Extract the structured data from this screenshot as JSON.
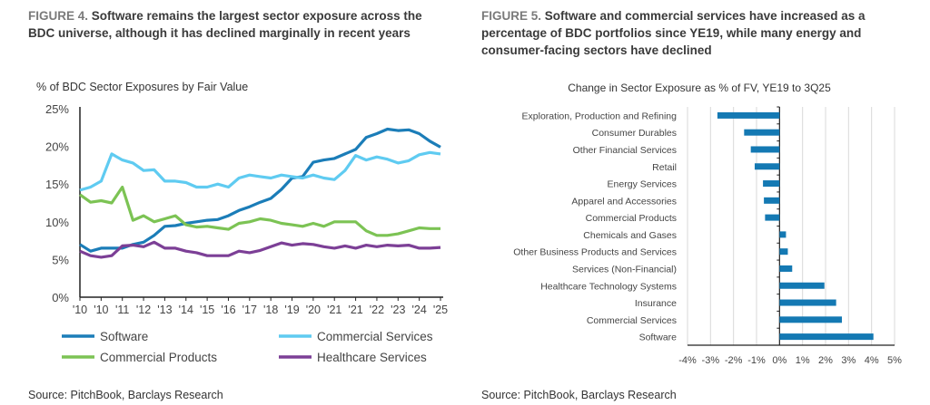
{
  "left": {
    "figure_label": "FIGURE 4.",
    "title": "Software remains the largest sector exposure across the BDC universe, although it has declined marginally in recent years",
    "source": "Source: PitchBook, Barclays Research"
  },
  "right": {
    "figure_label": "FIGURE 5.",
    "title": "Software and commercial services have increased as a percentage of BDC portfolios since YE19, while many energy and consumer-facing sectors have declined",
    "source": "Source: PitchBook, Barclays Research"
  },
  "chart_data": [
    {
      "type": "line",
      "title": "% of BDC Sector Exposures by Fair Value",
      "x_tick_labels": [
        "'10",
        "'10",
        "'11",
        "'12",
        "'13",
        "'14",
        "'15",
        "'16",
        "'17",
        "'18",
        "'19",
        "'20",
        "'21",
        "'21",
        "'22",
        "'23",
        "'24",
        "'25"
      ],
      "samples_per_tick": 2,
      "ylim": [
        0,
        25
      ],
      "y_ticks": [
        "0%",
        "5%",
        "10%",
        "15%",
        "20%",
        "25%"
      ],
      "y_tick_values": [
        0,
        5,
        10,
        15,
        20,
        25
      ],
      "grid": false,
      "legend": "bottom",
      "series": [
        {
          "name": "Software",
          "color": "#1b7db8",
          "values": [
            7.0,
            6.1,
            6.5,
            6.5,
            6.5,
            7.0,
            7.3,
            8.2,
            9.4,
            9.5,
            9.8,
            10.0,
            10.2,
            10.3,
            10.8,
            11.5,
            12.0,
            12.6,
            13.1,
            14.3,
            15.8,
            16.0,
            17.9,
            18.2,
            18.4,
            19.0,
            19.6,
            21.2,
            21.7,
            22.3,
            22.1,
            22.2,
            21.7,
            20.7,
            19.9
          ]
        },
        {
          "name": "Commercial Services",
          "color": "#5fcbf1",
          "values": [
            14.2,
            14.6,
            15.4,
            19.0,
            18.2,
            17.8,
            16.8,
            16.9,
            15.4,
            15.4,
            15.2,
            14.6,
            14.6,
            15.0,
            14.6,
            15.8,
            16.2,
            16.0,
            15.8,
            16.2,
            16.0,
            15.8,
            16.2,
            15.8,
            15.6,
            16.8,
            18.8,
            18.2,
            18.6,
            18.3,
            17.8,
            18.1,
            18.9,
            19.2,
            19.0
          ]
        },
        {
          "name": "Commercial Products",
          "color": "#7cc354",
          "values": [
            13.6,
            12.6,
            12.8,
            12.5,
            14.6,
            10.2,
            10.8,
            10.0,
            10.4,
            10.8,
            9.6,
            9.3,
            9.4,
            9.2,
            9.0,
            9.8,
            10.0,
            10.4,
            10.2,
            9.8,
            9.6,
            9.4,
            9.8,
            9.4,
            10.0,
            10.0,
            10.0,
            8.8,
            8.2,
            8.2,
            8.4,
            8.8,
            9.2,
            9.1,
            9.1
          ]
        },
        {
          "name": "Healthcare Services",
          "color": "#7c3f96",
          "values": [
            6.1,
            5.5,
            5.3,
            5.5,
            6.8,
            6.9,
            6.7,
            7.3,
            6.5,
            6.5,
            6.1,
            5.9,
            5.5,
            5.5,
            5.5,
            6.1,
            5.9,
            6.2,
            6.7,
            7.2,
            6.9,
            7.1,
            7.0,
            6.7,
            6.5,
            6.8,
            6.5,
            6.9,
            6.7,
            6.9,
            6.8,
            6.9,
            6.5,
            6.5,
            6.6
          ]
        }
      ]
    },
    {
      "type": "bar",
      "orientation": "horizontal",
      "title": "Change in Sector Exposure as % of FV, YE19 to 3Q25",
      "categories": [
        "Exploration, Production and Refining",
        "Consumer Durables",
        "Other Financial Services",
        "Retail",
        "Energy Services",
        "Apparel and Accessories",
        "Commercial Products",
        "Chemicals and Gases",
        "Other Business Products and Services",
        "Services (Non-Financial)",
        "Healthcare Technology Systems",
        "Insurance",
        "Commercial Services",
        "Software"
      ],
      "values": [
        -2.7,
        -1.54,
        -1.25,
        -1.08,
        -0.72,
        -0.68,
        -0.63,
        0.28,
        0.36,
        0.55,
        1.95,
        2.46,
        2.71,
        4.08
      ],
      "xlim": [
        -4,
        5
      ],
      "x_ticks": [
        "-4%",
        "-3%",
        "-2%",
        "-1%",
        "0%",
        "1%",
        "2%",
        "3%",
        "4%",
        "5%"
      ],
      "x_tick_values": [
        -4,
        -3,
        -2,
        -1,
        0,
        1,
        2,
        3,
        4,
        5
      ],
      "grid": true,
      "color": "#1479b3"
    }
  ]
}
